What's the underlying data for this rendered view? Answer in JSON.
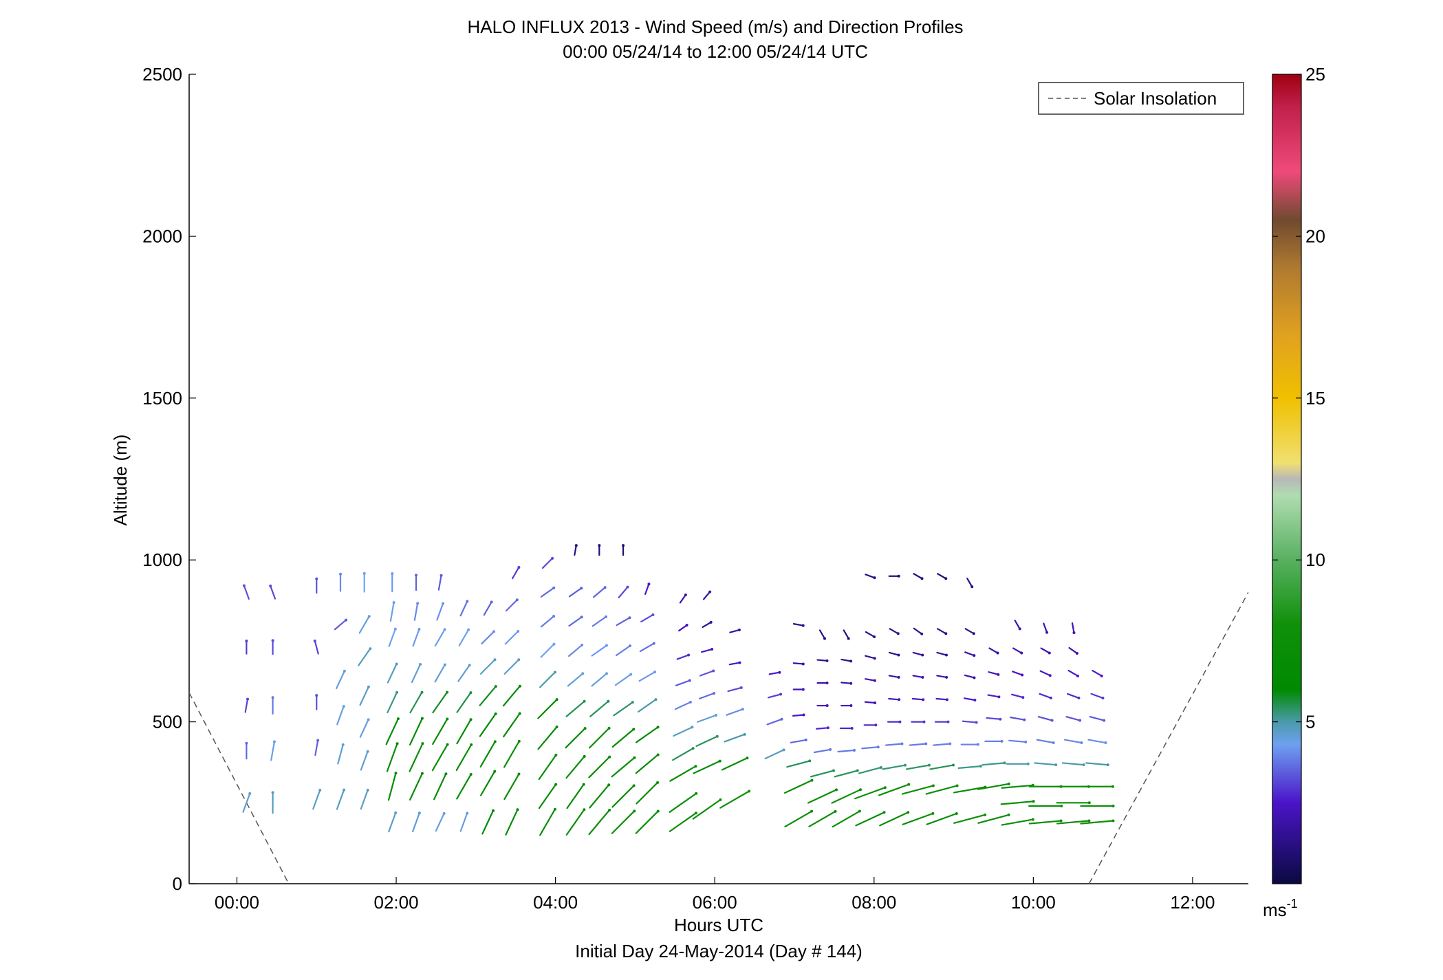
{
  "chart_data": {
    "type": "vector-field",
    "title": "HALO INFLUX 2013 - Wind Speed (m/s) and Direction Profiles",
    "subtitle": "00:00 05/24/14 to 12:00 05/24/14  UTC",
    "xlabel": "Hours UTC",
    "xlabel2": "Initial Day 24-May-2014 (Day # 144)",
    "ylabel": "Altitude (m)",
    "xlim": [
      -0.6,
      12.7
    ],
    "ylim": [
      0,
      2500
    ],
    "x_ticks": [
      0,
      2,
      4,
      6,
      8,
      10,
      12
    ],
    "x_tick_labels": [
      "00:00",
      "02:00",
      "04:00",
      "06:00",
      "08:00",
      "10:00",
      "12:00"
    ],
    "y_ticks": [
      0,
      500,
      1000,
      1500,
      2000,
      2500
    ],
    "y_tick_labels": [
      "0",
      "500",
      "1000",
      "1500",
      "2000",
      "2500"
    ],
    "legend": {
      "placement": "top-right",
      "entries": [
        {
          "name": "Solar Insolation",
          "style": "dashed",
          "color": "#555555"
        }
      ]
    },
    "solar_insolation": [
      [
        [
          -0.6,
          590
        ],
        [
          0.65,
          0
        ]
      ],
      [
        [
          10.7,
          0
        ],
        [
          12.7,
          900
        ]
      ]
    ],
    "colorbar": {
      "min": 0,
      "max": 25,
      "ticks": [
        5,
        10,
        15,
        20,
        25
      ],
      "tick_labels": [
        "5",
        "10",
        "15",
        "20",
        "25"
      ],
      "unit": "ms",
      "unit_exponent": "-1",
      "stops": [
        [
          0,
          "#0a0a40"
        ],
        [
          2.5,
          "#4a14c8"
        ],
        [
          4.3,
          "#6ea0f0"
        ],
        [
          5,
          "#4a9aaa"
        ],
        [
          6,
          "#008a00"
        ],
        [
          8,
          "#10900a"
        ],
        [
          10,
          "#58b060"
        ],
        [
          12,
          "#b0dcb0"
        ],
        [
          12.5,
          "#b8b8b8"
        ],
        [
          13,
          "#f0e070"
        ],
        [
          15,
          "#f0c000"
        ],
        [
          17,
          "#e0a020"
        ],
        [
          19,
          "#b07a30"
        ],
        [
          20.5,
          "#704a30"
        ],
        [
          22,
          "#f04a7a"
        ],
        [
          24,
          "#c0204a"
        ],
        [
          25,
          "#a00010"
        ]
      ]
    },
    "profiles": [
      {
        "t": 0.12,
        "alts": [
          250,
          410,
          550,
          730,
          900
        ],
        "speed": [
          4.6,
          3.6,
          3.1,
          3.0,
          3.3
        ],
        "dir": [
          200,
          180,
          190,
          180,
          160
        ]
      },
      {
        "t": 0.45,
        "alts": [
          250,
          410,
          550,
          730,
          900
        ],
        "speed": [
          4.8,
          4.4,
          3.8,
          3.2,
          3.2
        ],
        "dir": [
          180,
          190,
          180,
          180,
          160
        ]
      },
      {
        "t": 1.0,
        "alts": [
          260,
          420,
          560,
          730,
          920
        ],
        "speed": [
          4.7,
          3.5,
          3.3,
          3.1,
          3.3
        ],
        "dir": [
          200,
          190,
          180,
          165,
          180
        ]
      },
      {
        "t": 1.3,
        "alts": [
          260,
          400,
          520,
          630,
          800,
          930
        ],
        "speed": [
          4.8,
          4.6,
          4.5,
          4.5,
          3.4,
          4.0
        ],
        "dir": [
          200,
          195,
          200,
          205,
          230,
          180
        ]
      },
      {
        "t": 1.6,
        "alts": [
          260,
          380,
          480,
          580,
          700,
          800,
          930
        ],
        "speed": [
          4.7,
          4.6,
          4.5,
          4.7,
          4.8,
          4.5,
          4.3
        ],
        "dir": [
          200,
          200,
          205,
          205,
          215,
          210,
          180
        ]
      },
      {
        "t": 1.95,
        "alts": [
          190,
          300,
          390,
          470,
          560,
          650,
          760,
          840,
          930
        ],
        "speed": [
          4.7,
          6.5,
          6.9,
          6.6,
          5.2,
          4.8,
          4.3,
          4.4,
          4.2
        ],
        "dir": [
          200,
          195,
          200,
          205,
          205,
          205,
          200,
          190,
          180
        ]
      },
      {
        "t": 2.25,
        "alts": [
          190,
          300,
          390,
          470,
          560,
          650,
          760,
          840,
          930
        ],
        "speed": [
          4.6,
          6.8,
          7.2,
          6.8,
          5.5,
          4.6,
          4.2,
          4.0,
          3.5
        ],
        "dir": [
          200,
          205,
          205,
          205,
          210,
          205,
          200,
          190,
          180
        ]
      },
      {
        "t": 2.55,
        "alts": [
          190,
          300,
          390,
          470,
          560,
          650,
          760,
          840,
          930
        ],
        "speed": [
          4.5,
          6.6,
          7.0,
          6.8,
          5.8,
          4.6,
          4.4,
          4.1,
          3.4
        ],
        "dir": [
          205,
          205,
          210,
          210,
          215,
          210,
          210,
          200,
          190
        ]
      },
      {
        "t": 2.85,
        "alts": [
          190,
          300,
          390,
          470,
          560,
          650,
          760,
          850
        ],
        "speed": [
          4.5,
          6.6,
          6.9,
          6.5,
          5.6,
          4.6,
          4.3,
          3.7
        ],
        "dir": [
          200,
          210,
          210,
          210,
          215,
          215,
          210,
          205
        ]
      },
      {
        "t": 3.15,
        "alts": [
          190,
          310,
          400,
          490,
          580,
          670,
          760,
          850
        ],
        "speed": [
          6.0,
          6.5,
          6.8,
          6.4,
          5.8,
          4.7,
          4.0,
          3.5
        ],
        "dir": [
          205,
          210,
          210,
          215,
          220,
          225,
          225,
          210
        ]
      },
      {
        "t": 3.45,
        "alts": [
          190,
          300,
          400,
          490,
          580,
          670,
          760,
          860
        ],
        "speed": [
          6.5,
          6.8,
          7.0,
          6.6,
          6.0,
          4.7,
          4.2,
          3.6
        ],
        "dir": [
          205,
          210,
          210,
          215,
          220,
          225,
          225,
          225
        ]
      },
      {
        "t": 3.5,
        "alts": [
          960
        ],
        "speed": [
          3.0
        ],
        "dir": [
          210
        ]
      },
      {
        "t": 3.9,
        "alts": [
          190,
          270,
          360,
          450,
          540,
          630,
          720,
          810,
          900,
          990
        ],
        "speed": [
          7.0,
          6.8,
          6.9,
          6.8,
          6.2,
          5.0,
          4.3,
          3.8,
          3.6,
          3.2
        ],
        "dir": [
          210,
          215,
          215,
          220,
          225,
          225,
          225,
          230,
          235,
          225
        ]
      },
      {
        "t": 4.25,
        "alts": [
          190,
          270,
          360,
          450,
          540,
          630,
          720,
          810,
          900,
          1030
        ],
        "speed": [
          7.2,
          6.8,
          6.6,
          6.4,
          5.5,
          4.5,
          4.0,
          3.6,
          3.4,
          1.2
        ],
        "dir": [
          215,
          215,
          220,
          225,
          230,
          230,
          230,
          235,
          235,
          190
        ]
      },
      {
        "t": 4.55,
        "alts": [
          190,
          270,
          360,
          450,
          540,
          630,
          720,
          810,
          900,
          1030
        ],
        "speed": [
          7.4,
          7.0,
          6.8,
          6.5,
          5.5,
          4.5,
          4.2,
          3.8,
          3.5,
          1.0
        ],
        "dir": [
          220,
          220,
          225,
          225,
          230,
          230,
          235,
          235,
          230,
          180
        ]
      },
      {
        "t": 4.85,
        "alts": [
          190,
          270,
          360,
          450,
          540,
          630,
          720,
          810,
          900,
          1030
        ],
        "speed": [
          7.4,
          7.1,
          6.9,
          6.4,
          5.4,
          4.4,
          3.9,
          3.5,
          3.2,
          0.9
        ],
        "dir": [
          225,
          225,
          230,
          230,
          235,
          235,
          235,
          240,
          220,
          180
        ]
      },
      {
        "t": 5.15,
        "alts": [
          190,
          280,
          370,
          460,
          550,
          640,
          730,
          820,
          910
        ],
        "speed": [
          7.3,
          7.0,
          6.7,
          6.2,
          5.0,
          4.2,
          3.7,
          3.2,
          2.5
        ],
        "dir": [
          225,
          225,
          230,
          235,
          235,
          240,
          240,
          240,
          200
        ]
      },
      {
        "t": 5.6,
        "alts": [
          190,
          250,
          340,
          400,
          470,
          550,
          620,
          700,
          790,
          880
        ],
        "speed": [
          7.5,
          7.6,
          6.9,
          5.5,
          4.8,
          3.9,
          3.4,
          2.8,
          2.2,
          2.0
        ],
        "dir": [
          235,
          235,
          240,
          240,
          245,
          245,
          250,
          250,
          235,
          215
        ]
      },
      {
        "t": 5.9,
        "alts": [
          230,
          360,
          440,
          510,
          580,
          650,
          720,
          800,
          890
        ],
        "speed": [
          7.8,
          6.8,
          5.4,
          4.6,
          3.6,
          3.3,
          2.5,
          1.7,
          1.8
        ],
        "dir": [
          235,
          245,
          245,
          250,
          250,
          250,
          255,
          240,
          220
        ]
      },
      {
        "t": 6.25,
        "alts": [
          260,
          370,
          450,
          530,
          600,
          680,
          780
        ],
        "speed": [
          7.8,
          6.5,
          5.0,
          4.0,
          3.2,
          2.4,
          1.8
        ],
        "dir": [
          240,
          245,
          250,
          250,
          255,
          260,
          255
        ]
      },
      {
        "t": 6.75,
        "alts": [
          400,
          500,
          580,
          650
        ],
        "speed": [
          4.8,
          3.6,
          3.0,
          2.4
        ],
        "dir": [
          245,
          250,
          255,
          260
        ]
      },
      {
        "t": 7.05,
        "alts": [
          200,
          300,
          370,
          440,
          520,
          600,
          680,
          800
        ],
        "speed": [
          7.2,
          7.0,
          5.5,
          3.6,
          2.5,
          2.2,
          1.8,
          1.2
        ],
        "dir": [
          240,
          245,
          255,
          260,
          265,
          270,
          275,
          280
        ]
      },
      {
        "t": 7.35,
        "alts": [
          200,
          270,
          340,
          410,
          480,
          550,
          620,
          690,
          770
        ],
        "speed": [
          7.1,
          7.3,
          5.5,
          3.8,
          2.7,
          2.3,
          2.0,
          1.5,
          1.3
        ],
        "dir": [
          240,
          245,
          255,
          260,
          265,
          270,
          270,
          275,
          330
        ]
      },
      {
        "t": 7.65,
        "alts": [
          200,
          270,
          340,
          410,
          480,
          550,
          620,
          690,
          770
        ],
        "speed": [
          7.3,
          7.4,
          5.5,
          3.8,
          2.7,
          2.3,
          2.0,
          1.4,
          1.3
        ],
        "dir": [
          240,
          245,
          255,
          265,
          270,
          270,
          275,
          280,
          330
        ]
      },
      {
        "t": 7.95,
        "alts": [
          200,
          280,
          350,
          420,
          490,
          560,
          630,
          700,
          770,
          950
        ],
        "speed": [
          7.3,
          7.5,
          5.3,
          3.8,
          2.7,
          2.3,
          2.0,
          1.6,
          1.3,
          1.3
        ],
        "dir": [
          245,
          250,
          255,
          265,
          270,
          275,
          280,
          285,
          300,
          290
        ]
      },
      {
        "t": 8.25,
        "alts": [
          200,
          290,
          360,
          430,
          500,
          570,
          640,
          710,
          780,
          950
        ],
        "speed": [
          7.3,
          7.4,
          5.3,
          3.8,
          2.8,
          2.4,
          2.0,
          1.6,
          1.4,
          1.2
        ],
        "dir": [
          245,
          250,
          260,
          265,
          270,
          275,
          280,
          285,
          300,
          270
        ]
      },
      {
        "t": 8.55,
        "alts": [
          200,
          290,
          360,
          430,
          500,
          570,
          640,
          710,
          780,
          950
        ],
        "speed": [
          7.5,
          7.5,
          5.4,
          3.8,
          2.9,
          2.5,
          2.1,
          1.7,
          1.5,
          1.2
        ],
        "dir": [
          250,
          255,
          260,
          265,
          270,
          275,
          280,
          285,
          305,
          300
        ]
      },
      {
        "t": 8.85,
        "alts": [
          200,
          290,
          360,
          430,
          500,
          570,
          640,
          710,
          780,
          950
        ],
        "speed": [
          7.4,
          7.5,
          5.5,
          3.9,
          3.0,
          2.5,
          2.1,
          1.7,
          1.4,
          1.2
        ],
        "dir": [
          250,
          255,
          260,
          265,
          270,
          275,
          280,
          285,
          300,
          300
        ]
      },
      {
        "t": 9.2,
        "alts": [
          200,
          290,
          360,
          430,
          500,
          570,
          640,
          710,
          780,
          930
        ],
        "speed": [
          7.5,
          7.4,
          5.2,
          3.9,
          3.2,
          2.5,
          2.0,
          1.7,
          1.4,
          1.4
        ],
        "dir": [
          255,
          260,
          265,
          270,
          275,
          280,
          285,
          290,
          300,
          330
        ]
      },
      {
        "t": 9.5,
        "alts": [
          200,
          300,
          370,
          440,
          510,
          580,
          650,
          720
        ],
        "speed": [
          7.4,
          7.3,
          5.2,
          3.9,
          3.2,
          2.6,
          2.3,
          1.8
        ],
        "dir": [
          255,
          260,
          265,
          270,
          275,
          280,
          285,
          300
        ]
      },
      {
        "t": 9.8,
        "alts": [
          190,
          250,
          300,
          370,
          440,
          510,
          580,
          650,
          720,
          800
        ],
        "speed": [
          7.4,
          7.6,
          7.3,
          5.0,
          3.9,
          3.3,
          2.7,
          2.4,
          2.0,
          2.0
        ],
        "dir": [
          260,
          265,
          265,
          270,
          275,
          280,
          285,
          290,
          300,
          330
        ]
      },
      {
        "t": 10.15,
        "alts": [
          190,
          240,
          300,
          370,
          440,
          510,
          580,
          650,
          720,
          790
        ],
        "speed": [
          7.4,
          7.6,
          7.4,
          5.0,
          3.9,
          3.3,
          2.8,
          2.5,
          2.0,
          2.0
        ],
        "dir": [
          265,
          270,
          270,
          275,
          280,
          285,
          290,
          295,
          300,
          340
        ]
      },
      {
        "t": 10.5,
        "alts": [
          190,
          250,
          300,
          370,
          440,
          510,
          580,
          650,
          720,
          790
        ],
        "speed": [
          7.5,
          7.6,
          7.3,
          5.0,
          4.0,
          3.3,
          2.8,
          2.5,
          2.1,
          2.1
        ],
        "dir": [
          265,
          270,
          270,
          275,
          280,
          285,
          290,
          300,
          305,
          350
        ]
      },
      {
        "t": 10.8,
        "alts": [
          190,
          240,
          300,
          370,
          440,
          510,
          580,
          650
        ],
        "speed": [
          7.6,
          7.6,
          7.4,
          5.1,
          4.1,
          3.4,
          2.9,
          2.5
        ],
        "dir": [
          265,
          270,
          270,
          275,
          280,
          285,
          290,
          300
        ]
      }
    ]
  }
}
